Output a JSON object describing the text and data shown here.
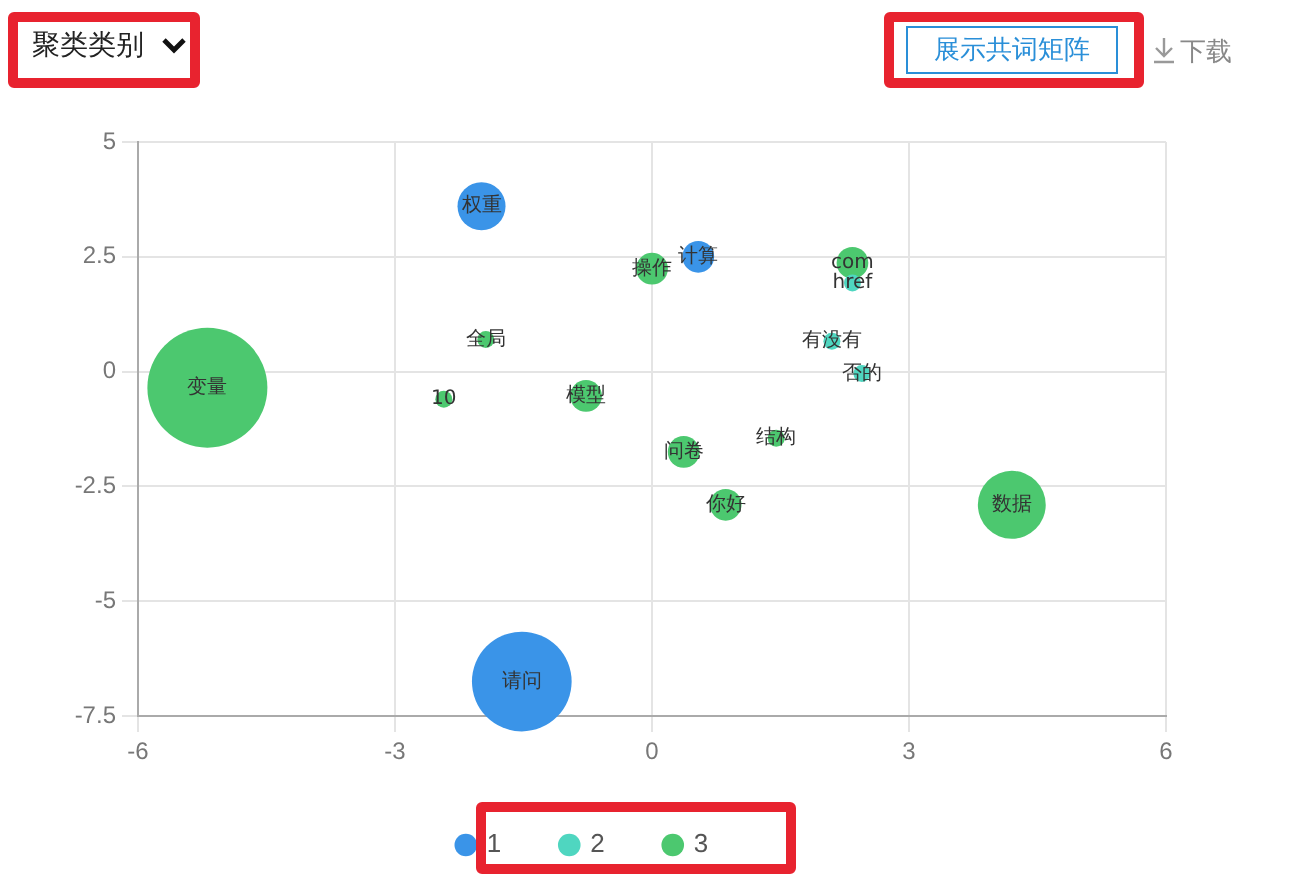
{
  "chart_data": {
    "type": "bubble",
    "xlim": [
      -6,
      6
    ],
    "xticks": [
      -6,
      -3,
      0,
      3,
      6
    ],
    "ylim": [
      -7.5,
      5
    ],
    "yticks": [
      -7.5,
      -5,
      -2.5,
      0,
      2.5,
      5
    ],
    "grid": true,
    "legend": "bottom",
    "marker": "circle",
    "series": [
      {
        "name": "1",
        "color": "#3a94e8",
        "x": [
          -1.99,
          0.54,
          -1.52
        ],
        "values": [
          3.6,
          2.5,
          -6.75
        ],
        "sizes": [
          0.16,
          0.07,
          0.69
        ]
      },
      {
        "name": "2",
        "color": "#4fd6c0",
        "x": [
          2.1,
          2.45,
          2.34
        ],
        "values": [
          0.66,
          -0.04,
          1.93
        ],
        "sizes": [
          0.02,
          0.02,
          0.02
        ]
      },
      {
        "name": "3",
        "color": "#4cc86f",
        "x": [
          0,
          2.34,
          -5.19,
          -0.77,
          0.37,
          0.86,
          4.2,
          1.45,
          -2.43,
          -1.94
        ],
        "values": [
          2.24,
          2.37,
          -0.35,
          -0.53,
          -1.75,
          -2.9,
          -2.9,
          -1.45,
          -0.6,
          0.7
        ],
        "sizes": [
          0.07,
          0.07,
          1,
          0.07,
          0.07,
          0.07,
          0.32,
          0.02,
          0.02,
          0.02
        ]
      }
    ],
    "annotations": [
      "聚类类别",
      "展示共词矩阵",
      "下载",
      {
        "text": "权重",
        "x": -1.99,
        "y": 3.6
      },
      {
        "text": "计算",
        "x": 0.54,
        "y": 2.5
      },
      {
        "text": "请问",
        "x": -1.52,
        "y": -6.75
      },
      {
        "text": "有没有",
        "x": 2.1,
        "y": 0.66
      },
      {
        "text": "否的",
        "x": 2.45,
        "y": -0.04
      },
      {
        "text": "href",
        "x": 2.34,
        "y": 1.93
      },
      {
        "text": "操作",
        "x": 0,
        "y": 2.24
      },
      {
        "text": "com",
        "x": 2.34,
        "y": 2.37
      },
      {
        "text": "变量",
        "x": -5.19,
        "y": -0.35
      },
      {
        "text": "模型",
        "x": -0.77,
        "y": -0.53
      },
      {
        "text": "问卷",
        "x": 0.37,
        "y": -1.75
      },
      {
        "text": "你好",
        "x": 0.86,
        "y": -2.9
      },
      {
        "text": "数据",
        "x": 4.2,
        "y": -2.9
      },
      {
        "text": "结构",
        "x": 1.45,
        "y": -1.45
      },
      {
        "text": "10",
        "x": -2.43,
        "y": -0.6
      },
      {
        "text": "全局",
        "x": -1.94,
        "y": 0.7
      }
    ]
  }
}
